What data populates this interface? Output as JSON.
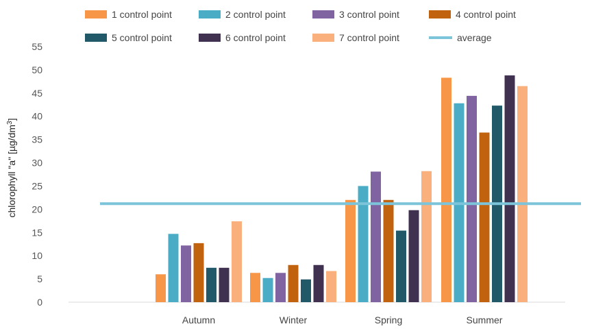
{
  "chart_data": {
    "type": "bar",
    "title": "",
    "xlabel": "",
    "ylabel_main": "chlorophyll \"a\" [µg/dm",
    "ylabel_sup": "3",
    "ylabel_end": "]",
    "ylim": [
      0,
      55
    ],
    "yticks": [
      0,
      5,
      10,
      15,
      20,
      25,
      30,
      35,
      40,
      45,
      50,
      55
    ],
    "grid": false,
    "legend_position": "top",
    "categories": [
      "Autumn",
      "Winter",
      "Spring",
      "Summer"
    ],
    "series": [
      {
        "name": "1 control point",
        "color": "#F79646",
        "values": [
          6,
          6.3,
          22,
          48.3
        ]
      },
      {
        "name": "2 control point",
        "color": "#4BACC6",
        "values": [
          14.7,
          5.2,
          25,
          42.8
        ]
      },
      {
        "name": "3 control point",
        "color": "#8064A2",
        "values": [
          12.2,
          6.3,
          28.1,
          44.4
        ]
      },
      {
        "name": "4 control point",
        "color": "#C0620E",
        "values": [
          12.7,
          8,
          22,
          36.5
        ]
      },
      {
        "name": "5 control point",
        "color": "#215968",
        "values": [
          7.4,
          4.9,
          15.4,
          42.3
        ]
      },
      {
        "name": "6 control point",
        "color": "#403151",
        "values": [
          7.4,
          8,
          19.8,
          48.8
        ]
      },
      {
        "name": "7 control point",
        "color": "#FAB07C",
        "values": [
          17.4,
          6.7,
          28.2,
          46.5
        ]
      }
    ],
    "average": {
      "name": "average",
      "value": 21.2,
      "color": "#7CC4D9"
    }
  }
}
